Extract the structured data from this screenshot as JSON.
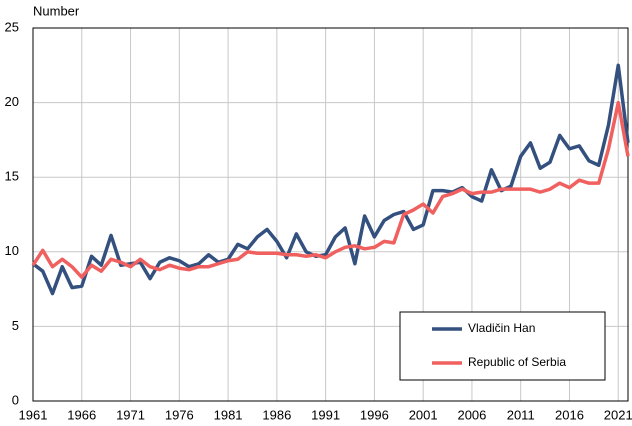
{
  "chart_data": {
    "type": "line",
    "y_label": "Number",
    "x": [
      1961,
      1962,
      1963,
      1964,
      1965,
      1966,
      1967,
      1968,
      1969,
      1970,
      1971,
      1972,
      1973,
      1974,
      1975,
      1976,
      1977,
      1978,
      1979,
      1980,
      1981,
      1982,
      1983,
      1984,
      1985,
      1986,
      1987,
      1988,
      1989,
      1990,
      1991,
      1992,
      1993,
      1994,
      1995,
      1996,
      1997,
      1998,
      1999,
      2000,
      2001,
      2002,
      2003,
      2004,
      2005,
      2006,
      2007,
      2008,
      2009,
      2010,
      2011,
      2012,
      2013,
      2014,
      2015,
      2016,
      2017,
      2018,
      2019,
      2020,
      2021,
      2022
    ],
    "series": [
      {
        "name": "Vladičin Han",
        "color": "#34507f",
        "values": [
          9.2,
          8.7,
          7.2,
          9.0,
          7.6,
          7.7,
          9.7,
          9.1,
          11.1,
          9.1,
          9.2,
          9.3,
          8.2,
          9.3,
          9.6,
          9.4,
          9.0,
          9.2,
          9.8,
          9.3,
          9.5,
          10.5,
          10.2,
          11.0,
          11.5,
          10.7,
          9.6,
          11.2,
          10.0,
          9.7,
          9.8,
          11.0,
          11.6,
          9.2,
          12.4,
          11.0,
          12.1,
          12.5,
          12.7,
          11.5,
          11.8,
          14.1,
          14.1,
          14.0,
          14.3,
          13.7,
          13.4,
          15.5,
          14.1,
          14.4,
          16.4,
          17.3,
          15.6,
          16.0,
          17.8,
          16.9,
          17.1,
          16.1,
          15.8,
          18.5,
          22.5,
          17.3
        ]
      },
      {
        "name": "Republic of Serbia",
        "color": "#f0605f",
        "values": [
          9.1,
          10.1,
          9.0,
          9.5,
          9.0,
          8.3,
          9.1,
          8.7,
          9.5,
          9.3,
          9.0,
          9.5,
          9.0,
          8.8,
          9.1,
          8.9,
          8.8,
          9.0,
          9.0,
          9.2,
          9.4,
          9.5,
          10.0,
          9.9,
          9.9,
          9.9,
          9.8,
          9.8,
          9.7,
          9.8,
          9.6,
          10.0,
          10.3,
          10.4,
          10.2,
          10.3,
          10.7,
          10.6,
          12.5,
          12.8,
          13.2,
          12.6,
          13.7,
          13.9,
          14.2,
          13.9,
          14.0,
          14.0,
          14.2,
          14.2,
          14.2,
          14.2,
          14.0,
          14.2,
          14.6,
          14.3,
          14.8,
          14.6,
          14.6,
          16.9,
          20.0,
          16.4
        ]
      }
    ],
    "xlim": [
      1961,
      2022
    ],
    "xticks": [
      1961,
      1966,
      1971,
      1976,
      1981,
      1986,
      1991,
      1996,
      2001,
      2006,
      2011,
      2016,
      2021
    ],
    "ylim": [
      0,
      25
    ],
    "yticks": [
      0,
      5,
      10,
      15,
      20,
      25
    ],
    "grid": true,
    "legend": "lower right"
  }
}
